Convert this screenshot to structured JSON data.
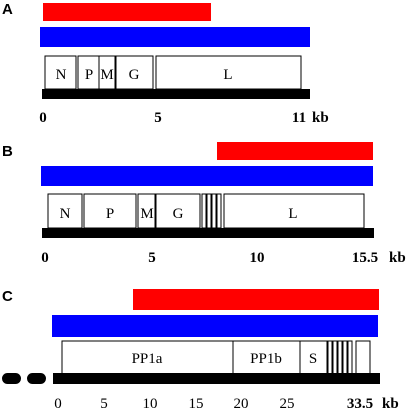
{
  "colors": {
    "red": "#ff0000",
    "blue": "#0000ff",
    "genome": "#000000"
  },
  "panels": [
    {
      "label": "A",
      "genes": [
        {
          "name": "N"
        },
        {
          "name": "P"
        },
        {
          "name": "M"
        },
        {
          "name": "G"
        },
        {
          "name": "L"
        }
      ],
      "ticks": [
        "0",
        "5",
        "11"
      ],
      "unit": "kb"
    },
    {
      "label": "B",
      "genes": [
        {
          "name": "N"
        },
        {
          "name": "P"
        },
        {
          "name": "M"
        },
        {
          "name": "G"
        },
        {
          "name": "L"
        }
      ],
      "ticks": [
        "0",
        "5",
        "10",
        "15.5"
      ],
      "unit": "kb"
    },
    {
      "label": "C",
      "genes": [
        {
          "name": "PP1a"
        },
        {
          "name": "PP1b"
        },
        {
          "name": "S"
        }
      ],
      "ticks": [
        "0",
        "5",
        "10",
        "15",
        "20",
        "25",
        "33.5"
      ],
      "unit": "kb"
    }
  ]
}
